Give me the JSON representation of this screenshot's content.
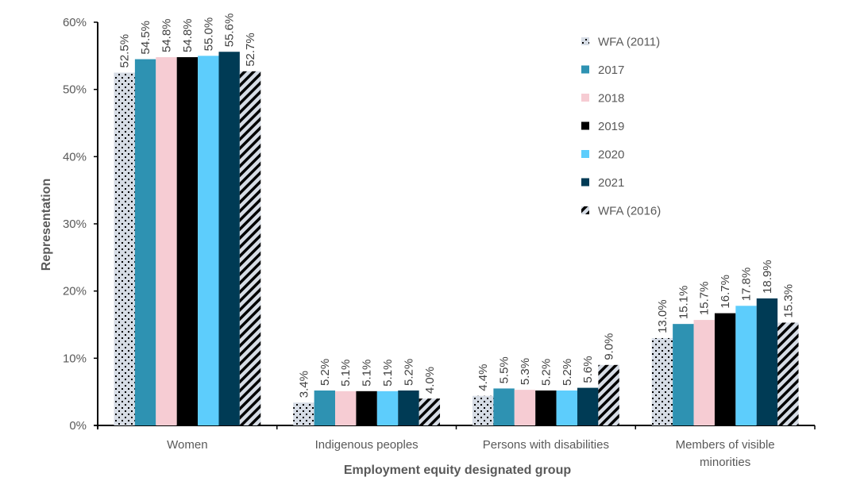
{
  "chart_data": {
    "type": "bar",
    "title": "",
    "xlabel": "Employment equity designated group",
    "ylabel": "Representation",
    "ylim": [
      0,
      60
    ],
    "yticks": [
      0,
      10,
      20,
      30,
      40,
      50,
      60
    ],
    "ytick_labels": [
      "0%",
      "10%",
      "20%",
      "30%",
      "40%",
      "50%",
      "60%"
    ],
    "grid": false,
    "legend_position": "top-right",
    "categories": [
      [
        "Women"
      ],
      [
        "Indigenous peoples"
      ],
      [
        "Persons with disabilities"
      ],
      [
        "Members of visible",
        "minorities"
      ]
    ],
    "series": [
      {
        "name": "WFA (2011)",
        "color": "#d6dce5",
        "pattern": "dots",
        "values": [
          52.5,
          3.4,
          4.4,
          13.0
        ],
        "labels": [
          "52.5%",
          "3.4%",
          "4.4%",
          "13.0%"
        ]
      },
      {
        "name": "2017",
        "color": "#2e92b2",
        "pattern": "solid",
        "values": [
          54.5,
          5.2,
          5.5,
          15.1
        ],
        "labels": [
          "54.5%",
          "5.2%",
          "5.5%",
          "15.1%"
        ]
      },
      {
        "name": "2018",
        "color": "#f6ccd3",
        "pattern": "solid",
        "values": [
          54.8,
          5.1,
          5.3,
          15.7
        ],
        "labels": [
          "54.8%",
          "5.1%",
          "5.3%",
          "15.7%"
        ]
      },
      {
        "name": "2019",
        "color": "#000000",
        "pattern": "solid",
        "values": [
          54.8,
          5.1,
          5.2,
          16.7
        ],
        "labels": [
          "54.8%",
          "5.1%",
          "5.2%",
          "16.7%"
        ]
      },
      {
        "name": "2020",
        "color": "#5dcdfc",
        "pattern": "solid",
        "values": [
          55.0,
          5.1,
          5.2,
          17.8
        ],
        "labels": [
          "55.0%",
          "5.1%",
          "5.2%",
          "17.8%"
        ]
      },
      {
        "name": "2021",
        "color": "#003b55",
        "pattern": "solid",
        "values": [
          55.6,
          5.2,
          5.6,
          18.9
        ],
        "labels": [
          "55.6%",
          "5.2%",
          "5.6%",
          "18.9%"
        ]
      },
      {
        "name": "WFA (2016)",
        "color": "#d6dce5",
        "pattern": "hatch",
        "values": [
          52.7,
          4.0,
          9.0,
          15.3
        ],
        "labels": [
          "52.7%",
          "4.0%",
          "9.0%",
          "15.3%"
        ]
      }
    ]
  }
}
